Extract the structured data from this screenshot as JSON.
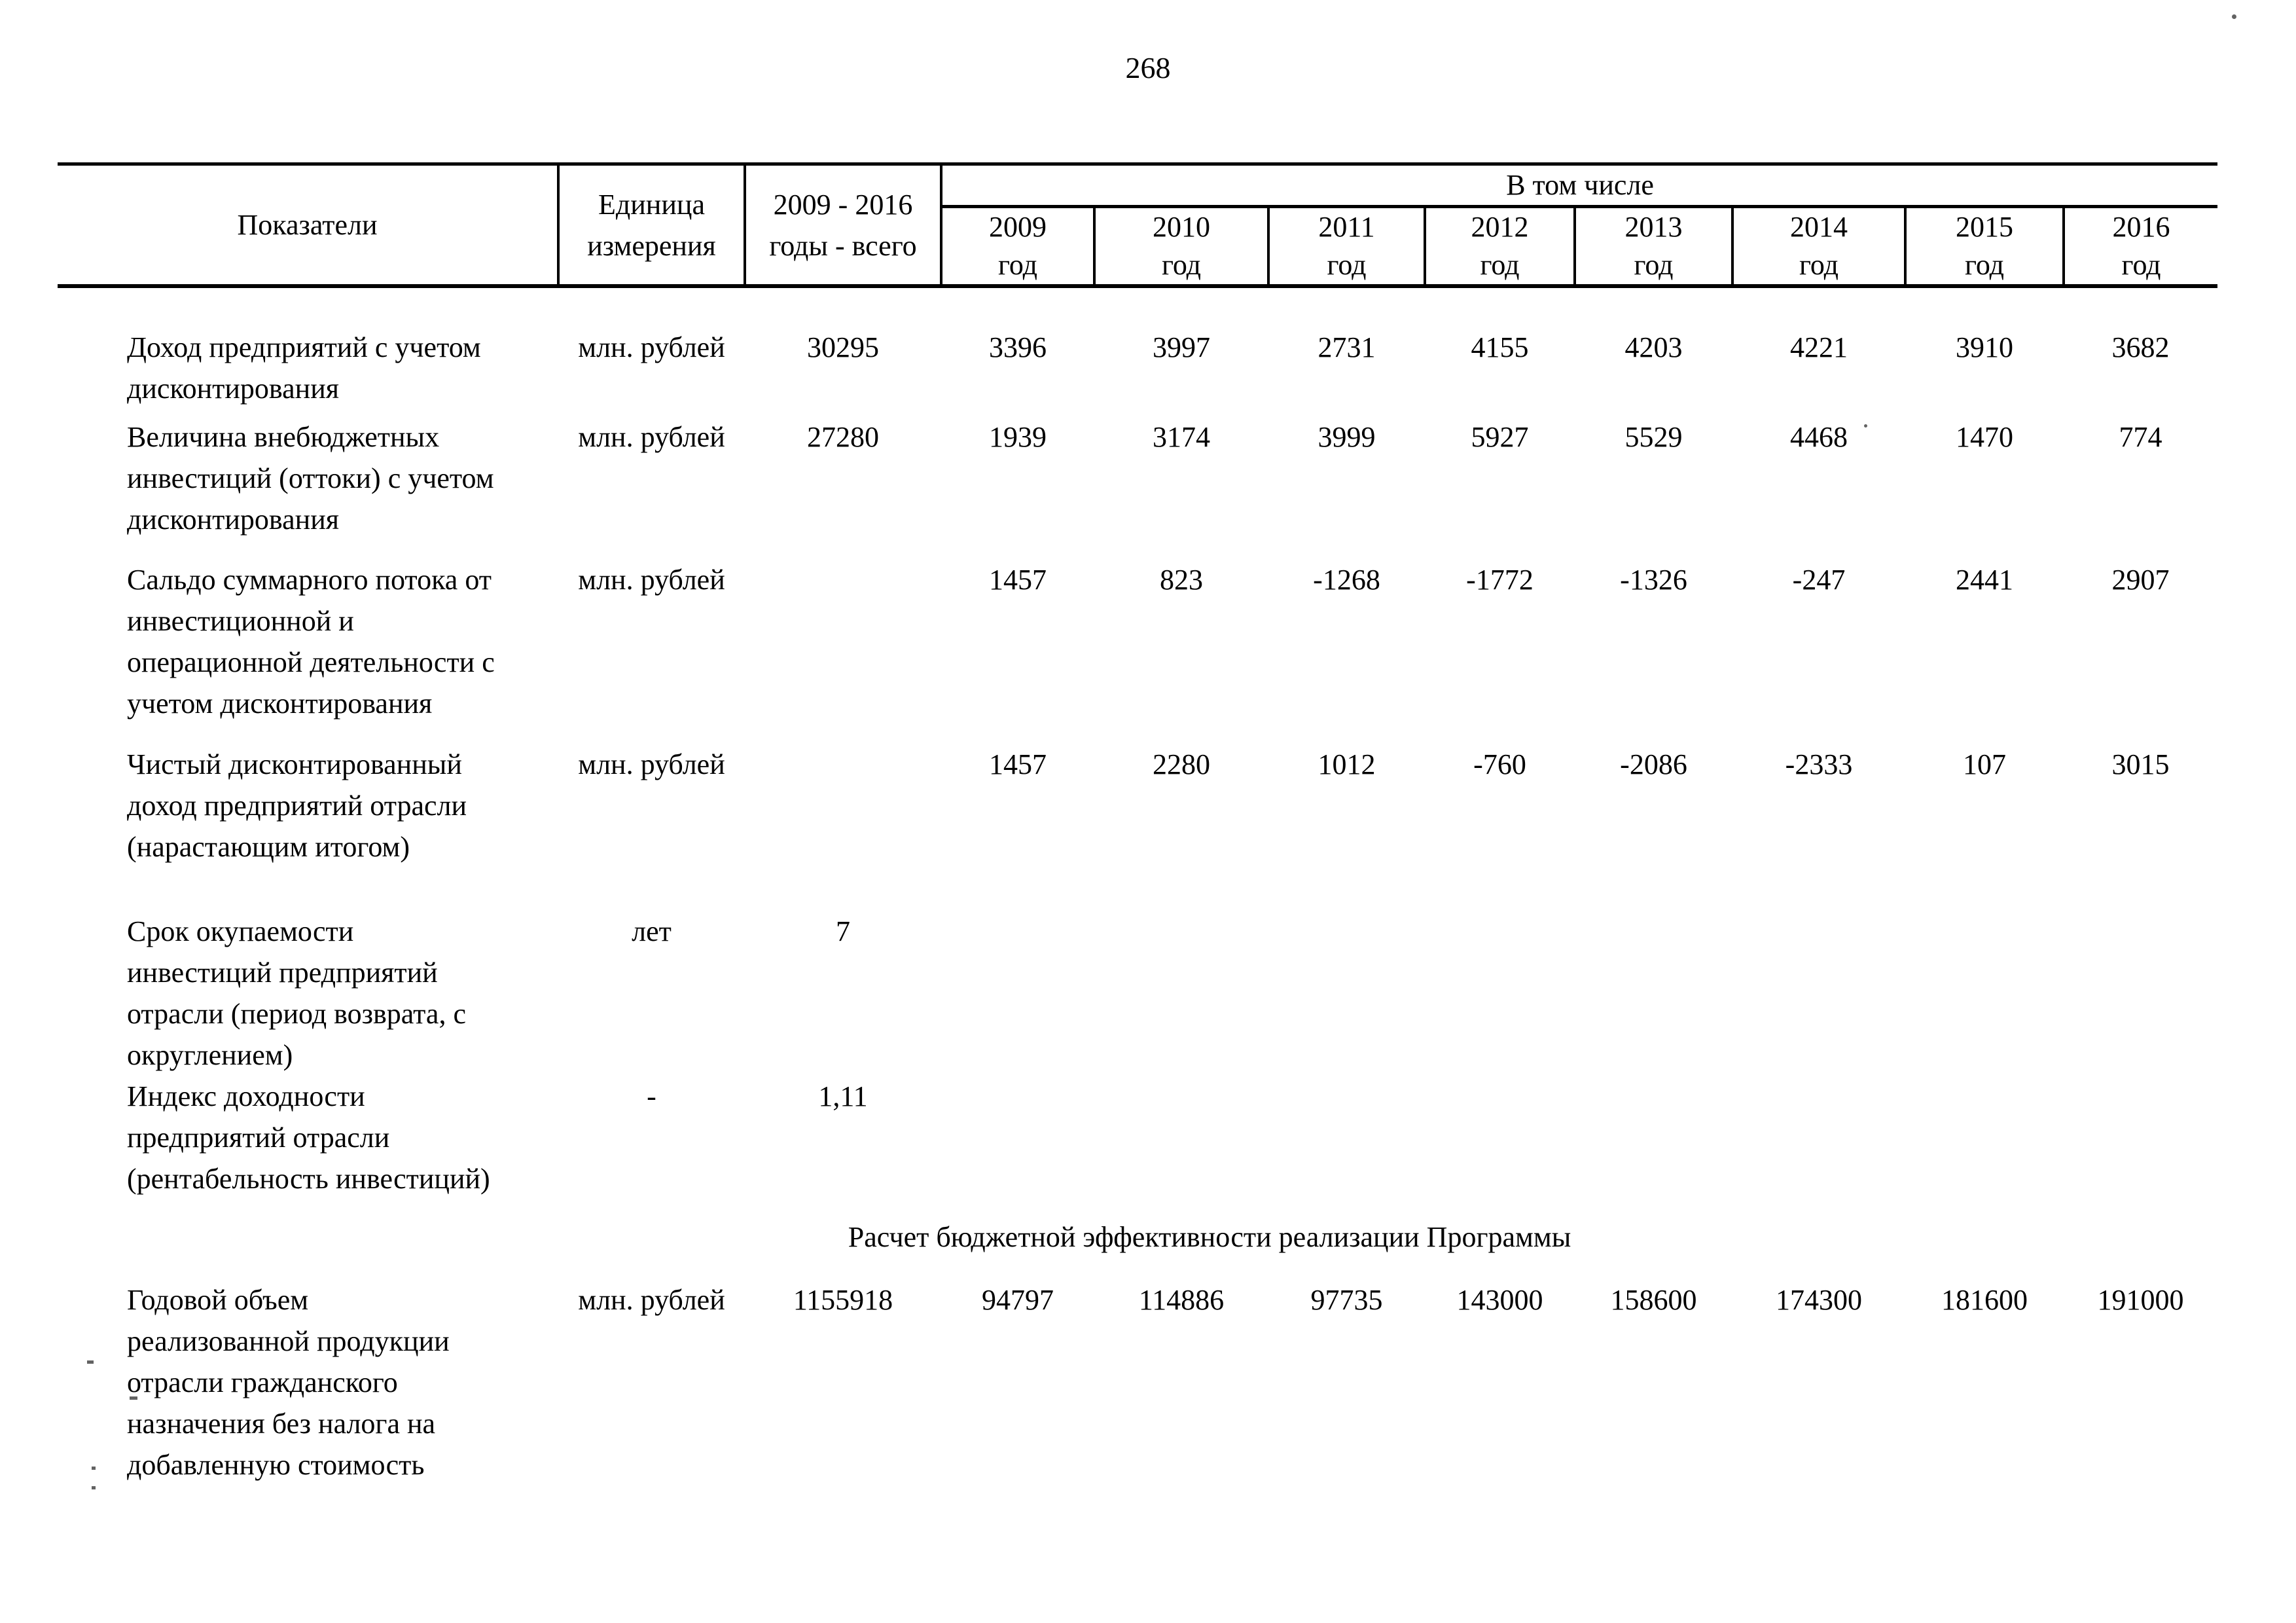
{
  "page": {
    "number": "268"
  },
  "table": {
    "header": {
      "indicators": "Показатели",
      "unit": "Единица\nизмерения",
      "total": "2009 - 2016\nгоды - всего",
      "included": "В том числе",
      "years": [
        {
          "year": "2009",
          "suffix": "год"
        },
        {
          "year": "2010",
          "suffix": "год"
        },
        {
          "year": "2011",
          "suffix": "год"
        },
        {
          "year": "2012",
          "suffix": "год"
        },
        {
          "year": "2013",
          "suffix": "год"
        },
        {
          "year": "2014",
          "suffix": "год"
        },
        {
          "year": "2015",
          "suffix": "год"
        },
        {
          "year": "2016",
          "suffix": "год"
        }
      ]
    },
    "body": [
      {
        "type": "row",
        "indicator": "Доход предприятий с учетом\nдисконтирования",
        "unit": "млн. рублей",
        "total": "30295",
        "years": [
          "3396",
          "3997",
          "2731",
          "4155",
          "4203",
          "4221",
          "3910",
          "3682"
        ]
      },
      {
        "type": "row",
        "indicator": "Величина внебюджетных\nинвестиций (оттоки) с учетом\nдисконтирования",
        "unit": "млн. рублей",
        "total": "27280",
        "years": [
          "1939",
          "3174",
          "3999",
          "5927",
          "5529",
          "4468",
          "1470",
          "774"
        ]
      },
      {
        "type": "row",
        "indicator": "Сальдо суммарного потока от\nинвестиционной и\nоперационной деятельности с\nучетом дисконтирования",
        "unit": "млн. рублей",
        "total": "",
        "years": [
          "1457",
          "823",
          "-1268",
          "-1772",
          "-1326",
          "-247",
          "2441",
          "2907"
        ]
      },
      {
        "type": "row",
        "indicator": "Чистый дисконтированный\nдоход предприятий отрасли\n(нарастающим итогом)",
        "unit": "млн. рублей",
        "total": "",
        "years": [
          "1457",
          "2280",
          "1012",
          "-760",
          "-2086",
          "-2333",
          "107",
          "3015"
        ]
      },
      {
        "type": "row",
        "indicator": "Срок окупаемости\nинвестиций предприятий\nотрасли (период возврата, с\nокруглением)",
        "unit": "лет",
        "total": "7",
        "years": [
          "",
          "",
          "",
          "",
          "",
          "",
          "",
          ""
        ]
      },
      {
        "type": "row",
        "indicator": "Индекс доходности\nпредприятий отрасли\n(рентабельность инвестиций)",
        "unit": "-",
        "total": "1,11",
        "years": [
          "",
          "",
          "",
          "",
          "",
          "",
          "",
          ""
        ]
      },
      {
        "type": "section",
        "text": "Расчет бюджетной эффективности реализации Программы"
      },
      {
        "type": "row",
        "indicator": "Годовой объем\nреализованной продукции\nотрасли гражданского\nназначения без налога на\nдобавленную стоимость",
        "unit": "млн. рублей",
        "total": "1155918",
        "years": [
          "94797",
          "114886",
          "97735",
          "143000",
          "158600",
          "174300",
          "181600",
          "191000"
        ]
      }
    ]
  }
}
